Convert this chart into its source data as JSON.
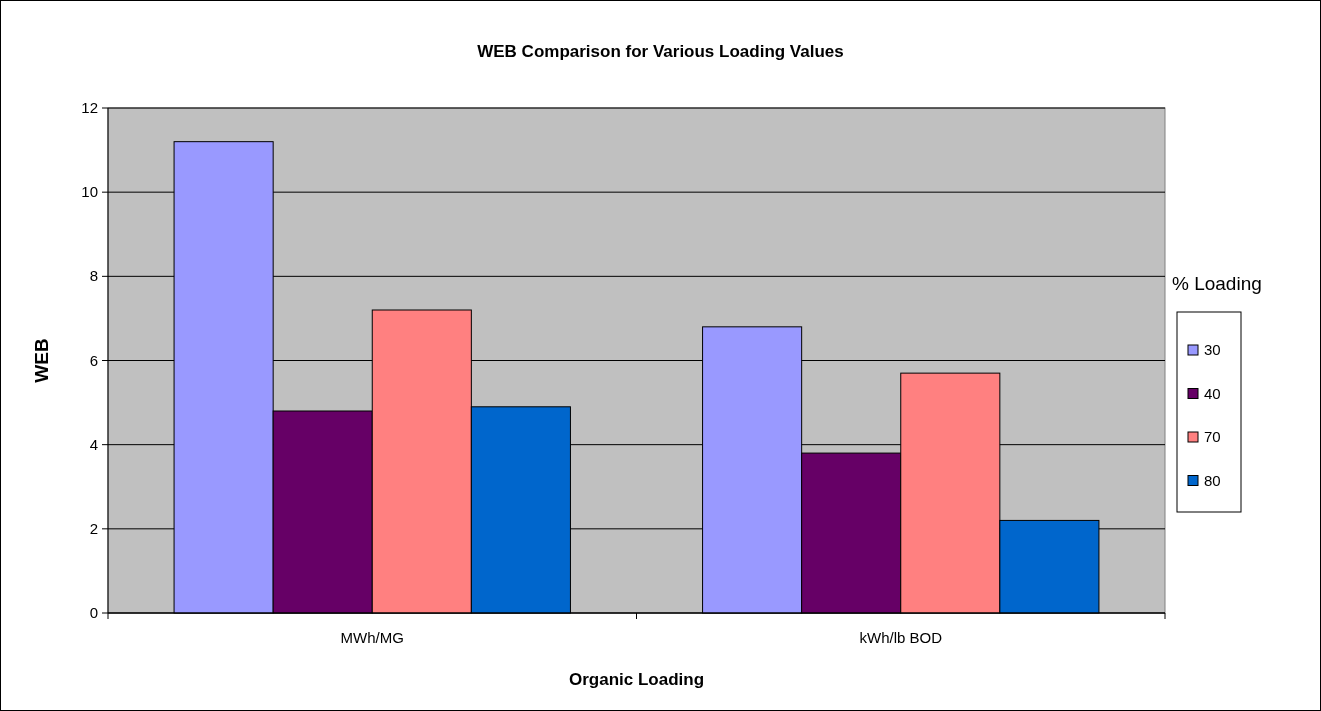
{
  "chart_data": {
    "type": "bar",
    "title": "WEB Comparison for Various Loading Values",
    "xlabel": "Organic Loading",
    "ylabel": "WEB",
    "legend_title": "% Loading",
    "categories": [
      "MWh/MG",
      "kWh/lb BOD"
    ],
    "series": [
      {
        "name": "30",
        "color": "#9999ff",
        "values": [
          11.2,
          6.8
        ]
      },
      {
        "name": "40",
        "color": "#660066",
        "values": [
          4.8,
          3.8
        ]
      },
      {
        "name": "70",
        "color": "#ff8080",
        "values": [
          7.2,
          5.7
        ]
      },
      {
        "name": "80",
        "color": "#0066cc",
        "values": [
          4.9,
          2.2
        ]
      }
    ],
    "ylim": [
      0,
      12
    ],
    "yticks": [
      0,
      2,
      4,
      6,
      8,
      10,
      12
    ],
    "grid": "y",
    "legend": "right"
  }
}
